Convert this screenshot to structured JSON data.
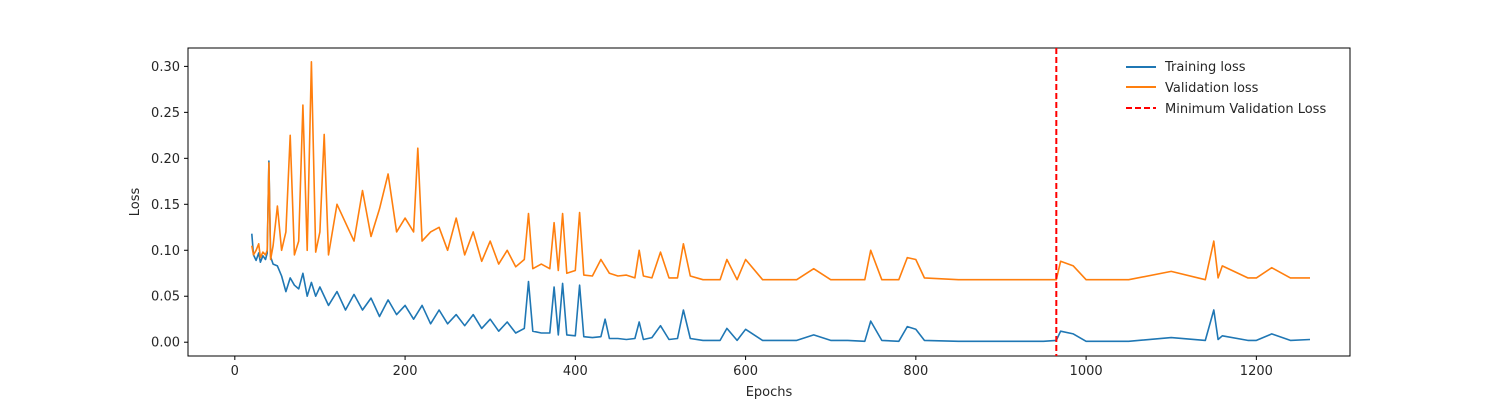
{
  "chart_data": {
    "type": "line",
    "title": "",
    "xlabel": "Epochs",
    "ylabel": "Loss",
    "xlim": [
      -55,
      1310
    ],
    "ylim": [
      -0.015,
      0.32
    ],
    "xticks": [
      0,
      200,
      400,
      600,
      800,
      1000,
      1200
    ],
    "yticks": [
      0.0,
      0.05,
      0.1,
      0.15,
      0.2,
      0.25,
      0.3
    ],
    "xtick_labels": [
      "0",
      "200",
      "400",
      "600",
      "800",
      "1000",
      "1200"
    ],
    "ytick_labels": [
      "0.00",
      "0.05",
      "0.10",
      "0.15",
      "0.20",
      "0.25",
      "0.30"
    ],
    "grid": false,
    "legend_position": "top-right",
    "series": [
      {
        "name": "Training loss",
        "color": "#1f77b4",
        "x": [
          20,
          22,
          25,
          28,
          30,
          33,
          36,
          38,
          40,
          42,
          45,
          50,
          55,
          60,
          65,
          70,
          75,
          80,
          85,
          90,
          95,
          100,
          110,
          120,
          130,
          140,
          150,
          160,
          170,
          180,
          190,
          200,
          210,
          220,
          230,
          240,
          250,
          260,
          270,
          280,
          290,
          300,
          310,
          320,
          330,
          340,
          345,
          350,
          360,
          370,
          375,
          380,
          385,
          390,
          400,
          405,
          410,
          420,
          430,
          435,
          440,
          450,
          460,
          470,
          475,
          480,
          490,
          500,
          510,
          520,
          527,
          535,
          550,
          570,
          578,
          590,
          600,
          620,
          640,
          660,
          680,
          700,
          720,
          740,
          747,
          760,
          780,
          790,
          800,
          810,
          850,
          900,
          950,
          965,
          970,
          985,
          1000,
          1050,
          1100,
          1140,
          1150,
          1155,
          1160,
          1190,
          1200,
          1218,
          1240,
          1263
        ],
        "y": [
          0.118,
          0.095,
          0.089,
          0.097,
          0.087,
          0.094,
          0.09,
          0.097,
          0.197,
          0.093,
          0.085,
          0.083,
          0.072,
          0.055,
          0.07,
          0.062,
          0.058,
          0.075,
          0.05,
          0.065,
          0.05,
          0.06,
          0.04,
          0.055,
          0.035,
          0.052,
          0.035,
          0.048,
          0.028,
          0.046,
          0.03,
          0.04,
          0.025,
          0.04,
          0.02,
          0.035,
          0.02,
          0.03,
          0.018,
          0.03,
          0.015,
          0.025,
          0.012,
          0.022,
          0.01,
          0.015,
          0.066,
          0.012,
          0.01,
          0.01,
          0.06,
          0.008,
          0.064,
          0.008,
          0.007,
          0.062,
          0.006,
          0.005,
          0.006,
          0.025,
          0.004,
          0.004,
          0.003,
          0.004,
          0.022,
          0.003,
          0.005,
          0.018,
          0.003,
          0.004,
          0.035,
          0.004,
          0.002,
          0.002,
          0.015,
          0.002,
          0.014,
          0.002,
          0.002,
          0.002,
          0.008,
          0.002,
          0.002,
          0.001,
          0.023,
          0.002,
          0.001,
          0.017,
          0.014,
          0.002,
          0.001,
          0.001,
          0.001,
          0.002,
          0.012,
          0.009,
          0.001,
          0.001,
          0.005,
          0.002,
          0.035,
          0.003,
          0.007,
          0.002,
          0.002,
          0.009,
          0.002,
          0.003
        ]
      },
      {
        "name": "Validation loss",
        "color": "#ff7f0e",
        "x": [
          20,
          22,
          25,
          28,
          30,
          33,
          36,
          38,
          40,
          42,
          45,
          50,
          55,
          60,
          65,
          70,
          75,
          80,
          85,
          90,
          95,
          100,
          105,
          110,
          120,
          130,
          140,
          150,
          160,
          170,
          180,
          190,
          200,
          210,
          215,
          220,
          230,
          240,
          250,
          260,
          270,
          280,
          290,
          300,
          310,
          320,
          330,
          340,
          345,
          350,
          360,
          370,
          375,
          380,
          385,
          390,
          400,
          405,
          410,
          420,
          430,
          440,
          450,
          460,
          470,
          475,
          480,
          490,
          500,
          510,
          520,
          527,
          535,
          550,
          570,
          578,
          590,
          600,
          620,
          640,
          660,
          680,
          700,
          720,
          740,
          747,
          760,
          780,
          790,
          800,
          810,
          850,
          900,
          950,
          965,
          970,
          985,
          1000,
          1050,
          1100,
          1140,
          1150,
          1155,
          1160,
          1190,
          1200,
          1218,
          1240,
          1263
        ],
        "y": [
          0.105,
          0.095,
          0.1,
          0.107,
          0.092,
          0.098,
          0.095,
          0.1,
          0.195,
          0.09,
          0.105,
          0.148,
          0.1,
          0.12,
          0.225,
          0.095,
          0.11,
          0.258,
          0.1,
          0.305,
          0.098,
          0.12,
          0.226,
          0.095,
          0.15,
          0.13,
          0.11,
          0.165,
          0.115,
          0.145,
          0.183,
          0.12,
          0.135,
          0.12,
          0.211,
          0.11,
          0.12,
          0.125,
          0.1,
          0.135,
          0.095,
          0.12,
          0.088,
          0.11,
          0.085,
          0.1,
          0.082,
          0.09,
          0.14,
          0.08,
          0.085,
          0.08,
          0.13,
          0.078,
          0.14,
          0.075,
          0.078,
          0.141,
          0.073,
          0.072,
          0.09,
          0.075,
          0.072,
          0.073,
          0.07,
          0.1,
          0.072,
          0.07,
          0.098,
          0.07,
          0.07,
          0.107,
          0.072,
          0.068,
          0.068,
          0.09,
          0.068,
          0.09,
          0.068,
          0.068,
          0.068,
          0.08,
          0.068,
          0.068,
          0.068,
          0.1,
          0.068,
          0.068,
          0.092,
          0.09,
          0.07,
          0.068,
          0.068,
          0.068,
          0.068,
          0.088,
          0.083,
          0.068,
          0.068,
          0.077,
          0.068,
          0.11,
          0.07,
          0.083,
          0.07,
          0.07,
          0.081,
          0.07,
          0.07
        ]
      }
    ],
    "annotations": [
      {
        "name": "Minimum Validation Loss",
        "type": "vline",
        "x": 965,
        "color": "#ff0000",
        "style": "dashed"
      }
    ]
  }
}
